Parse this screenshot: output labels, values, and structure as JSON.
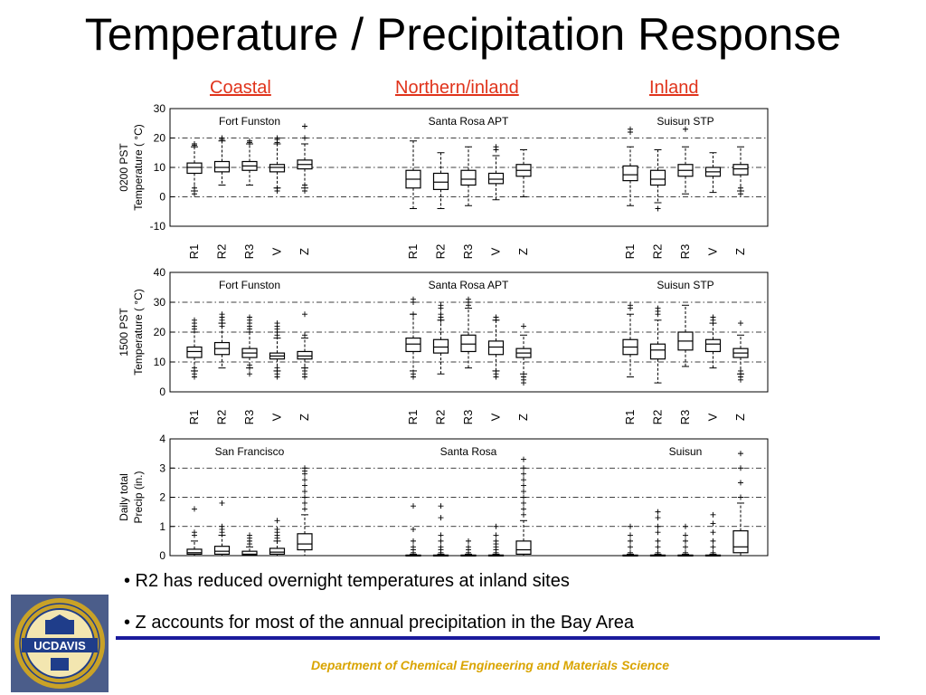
{
  "slide": {
    "title": "Temperature / Precipitation Response",
    "regions": [
      "Coastal",
      "Northern/inland",
      "Inland"
    ],
    "bullets": [
      "• R2 has reduced overnight temperatures at inland sites",
      "• Z accounts for most of the annual precipitation in the Bay Area"
    ],
    "footer": "Department of Chemical Engineering and Materials Science",
    "logo_text": "UCDAVIS",
    "logo_ring_text": "THE UNIVERSITY OF CALIFORNIA",
    "colors": {
      "title": "#000000",
      "region_link": "#e0331b",
      "footer_text": "#d9a400",
      "footer_line": "#1a1a9c",
      "logo_gold": "#c9a227",
      "logo_blue": "#1f3d8a"
    }
  },
  "chart_data": [
    {
      "type": "box",
      "ylabel": [
        "0200 PST",
        "Temperature ( °C)"
      ],
      "ylim": [
        -10,
        30
      ],
      "yticks": [
        -10,
        0,
        10,
        20,
        30
      ],
      "dashed_grid": [
        0,
        10,
        20
      ],
      "categories": [
        "R1",
        "R2",
        "R3",
        "V",
        "Z"
      ],
      "groups": [
        {
          "name": "Fort Funston",
          "boxes": [
            {
              "whislo": 2,
              "q1": 8,
              "med": 10,
              "q3": 11.5,
              "whishi": 17,
              "fliers": [
                1,
                3,
                17.5,
                18
              ]
            },
            {
              "whislo": 4,
              "q1": 8.5,
              "med": 10,
              "q3": 12,
              "whishi": 19,
              "fliers": [
                19.5,
                20
              ]
            },
            {
              "whislo": 4,
              "q1": 9,
              "med": 10.5,
              "q3": 12,
              "whishi": 18,
              "fliers": [
                18.5,
                19
              ]
            },
            {
              "whislo": 3,
              "q1": 8.5,
              "med": 10,
              "q3": 11,
              "whishi": 18,
              "fliers": [
                2,
                3,
                18.5,
                19.5,
                20
              ]
            },
            {
              "whislo": 3,
              "q1": 9.5,
              "med": 11,
              "q3": 12.5,
              "whishi": 18,
              "fliers": [
                2,
                4,
                20,
                24
              ]
            }
          ]
        },
        {
          "name": "Santa Rosa APT",
          "boxes": [
            {
              "whislo": -4,
              "q1": 3,
              "med": 6,
              "q3": 9,
              "whishi": 19,
              "fliers": []
            },
            {
              "whislo": -4,
              "q1": 2.5,
              "med": 5,
              "q3": 8,
              "whishi": 15,
              "fliers": []
            },
            {
              "whislo": -3,
              "q1": 4,
              "med": 6,
              "q3": 9,
              "whishi": 17,
              "fliers": []
            },
            {
              "whislo": -1,
              "q1": 4.5,
              "med": 6,
              "q3": 8,
              "whishi": 14,
              "fliers": [
                16,
                17
              ]
            },
            {
              "whislo": 0,
              "q1": 7,
              "med": 9,
              "q3": 11,
              "whishi": 16,
              "fliers": []
            }
          ]
        },
        {
          "name": "Suisun STP",
          "boxes": [
            {
              "whislo": -3,
              "q1": 5.5,
              "med": 7.5,
              "q3": 10.5,
              "whishi": 17,
              "fliers": [
                22,
                23
              ]
            },
            {
              "whislo": -2,
              "q1": 4,
              "med": 6,
              "q3": 9,
              "whishi": 16,
              "fliers": [
                -4
              ]
            },
            {
              "whislo": 1,
              "q1": 7,
              "med": 9,
              "q3": 11,
              "whishi": 17,
              "fliers": [
                23
              ]
            },
            {
              "whislo": 1.5,
              "q1": 7,
              "med": 8.5,
              "q3": 10,
              "whishi": 15,
              "fliers": []
            },
            {
              "whislo": 2,
              "q1": 7.5,
              "med": 9.5,
              "q3": 11,
              "whishi": 17,
              "fliers": [
                1,
                3
              ]
            }
          ]
        }
      ]
    },
    {
      "type": "box",
      "ylabel": [
        "1500 PST",
        "Temperature ( °C)"
      ],
      "ylim": [
        0,
        40
      ],
      "yticks": [
        0,
        10,
        20,
        30,
        40
      ],
      "dashed_grid": [
        10,
        20,
        30
      ],
      "categories": [
        "R1",
        "R2",
        "R3",
        "V",
        "Z"
      ],
      "groups": [
        {
          "name": "Fort Funston",
          "boxes": [
            {
              "whislo": 7,
              "q1": 11.5,
              "med": 13.5,
              "q3": 15,
              "whishi": 20,
              "fliers": [
                5,
                6,
                7,
                8,
                21,
                22,
                23,
                24
              ]
            },
            {
              "whislo": 8,
              "q1": 12.5,
              "med": 14.5,
              "q3": 16.5,
              "whishi": 23,
              "fliers": [
                22,
                23,
                24,
                25,
                26
              ]
            },
            {
              "whislo": 8,
              "q1": 11.5,
              "med": 13,
              "q3": 14.5,
              "whishi": 20,
              "fliers": [
                6,
                8,
                9,
                21,
                22,
                23,
                24,
                25
              ]
            },
            {
              "whislo": 7,
              "q1": 11,
              "med": 12,
              "q3": 13,
              "whishi": 18,
              "fliers": [
                5,
                6,
                7,
                8,
                19,
                20,
                21,
                22,
                23
              ]
            },
            {
              "whislo": 8,
              "q1": 11,
              "med": 12,
              "q3": 13.5,
              "whishi": 18,
              "fliers": [
                5,
                6,
                7,
                8,
                19,
                26
              ]
            }
          ]
        },
        {
          "name": "Santa Rosa APT",
          "boxes": [
            {
              "whislo": 7,
              "q1": 13.5,
              "med": 16,
              "q3": 18,
              "whishi": 26,
              "fliers": [
                5,
                6,
                26,
                30,
                31
              ]
            },
            {
              "whislo": 6,
              "q1": 13,
              "med": 15,
              "q3": 17.5,
              "whishi": 24,
              "fliers": [
                24,
                25,
                26,
                28,
                29
              ]
            },
            {
              "whislo": 8,
              "q1": 13.5,
              "med": 16,
              "q3": 19,
              "whishi": 28,
              "fliers": [
                29,
                30,
                31
              ]
            },
            {
              "whislo": 7,
              "q1": 12.5,
              "med": 15,
              "q3": 17,
              "whishi": 24,
              "fliers": [
                5,
                6,
                7,
                24,
                25
              ]
            },
            {
              "whislo": 6,
              "q1": 11.5,
              "med": 13,
              "q3": 14.5,
              "whishi": 19,
              "fliers": [
                3,
                4,
                5,
                22
              ]
            }
          ]
        },
        {
          "name": "Suisun STP",
          "boxes": [
            {
              "whislo": 5,
              "q1": 12.5,
              "med": 15,
              "q3": 17.5,
              "whishi": 26,
              "fliers": [
                28,
                29
              ]
            },
            {
              "whislo": 3,
              "q1": 11,
              "med": 14,
              "q3": 16,
              "whishi": 24,
              "fliers": [
                26,
                27,
                28
              ]
            },
            {
              "whislo": 8.5,
              "q1": 14,
              "med": 17,
              "q3": 20,
              "whishi": 29,
              "fliers": []
            },
            {
              "whislo": 8,
              "q1": 13.5,
              "med": 16,
              "q3": 17.5,
              "whishi": 23,
              "fliers": [
                24,
                25
              ]
            },
            {
              "whislo": 6,
              "q1": 11.5,
              "med": 13,
              "q3": 14.5,
              "whishi": 19,
              "fliers": [
                4,
                5,
                6,
                7,
                23
              ]
            }
          ]
        }
      ]
    },
    {
      "type": "box",
      "ylabel": [
        "Daily total",
        "Precip (in.)"
      ],
      "ylim": [
        0,
        4
      ],
      "yticks": [
        0,
        1,
        2,
        3,
        4
      ],
      "dashed_grid": [
        1,
        2,
        3
      ],
      "categories": [
        "",
        "",
        "",
        "",
        ""
      ],
      "groups": [
        {
          "name": "San Francisco",
          "boxes": [
            {
              "whislo": 0,
              "q1": 0.05,
              "med": 0.1,
              "q3": 0.22,
              "whishi": 0.5,
              "fliers": [
                0.7,
                0.8,
                1.6
              ]
            },
            {
              "whislo": 0,
              "q1": 0.05,
              "med": 0.15,
              "q3": 0.32,
              "whishi": 0.7,
              "fliers": [
                0.8,
                0.9,
                1.0,
                1.8
              ]
            },
            {
              "whislo": 0,
              "q1": 0.02,
              "med": 0.05,
              "q3": 0.15,
              "whishi": 0.3,
              "fliers": [
                0.4,
                0.5,
                0.6,
                0.7
              ]
            },
            {
              "whislo": 0,
              "q1": 0.05,
              "med": 0.12,
              "q3": 0.25,
              "whishi": 0.5,
              "fliers": [
                0.6,
                0.7,
                0.8,
                0.9,
                1.2
              ]
            },
            {
              "whislo": 0,
              "q1": 0.2,
              "med": 0.4,
              "q3": 0.75,
              "whishi": 1.4,
              "fliers": [
                1.6,
                1.8,
                2.0,
                2.2,
                2.4,
                2.6,
                2.8,
                2.9,
                3.0
              ]
            }
          ]
        },
        {
          "name": "Santa Rosa",
          "boxes": [
            {
              "whislo": 0,
              "q1": 0,
              "med": 0,
              "q3": 0.02,
              "whishi": 0.05,
              "fliers": [
                0.1,
                0.2,
                0.3,
                0.5,
                0.9,
                1.7
              ]
            },
            {
              "whislo": 0,
              "q1": 0,
              "med": 0,
              "q3": 0.02,
              "whishi": 0.05,
              "fliers": [
                0.1,
                0.2,
                0.3,
                0.5,
                0.7,
                1.3,
                1.7
              ]
            },
            {
              "whislo": 0,
              "q1": 0,
              "med": 0,
              "q3": 0.02,
              "whishi": 0.05,
              "fliers": [
                0.1,
                0.2,
                0.3,
                0.5
              ]
            },
            {
              "whislo": 0,
              "q1": 0,
              "med": 0,
              "q3": 0.02,
              "whishi": 0.05,
              "fliers": [
                0.1,
                0.2,
                0.3,
                0.4,
                0.5,
                0.7,
                1.0
              ]
            },
            {
              "whislo": 0,
              "q1": 0.05,
              "med": 0.2,
              "q3": 0.5,
              "whishi": 1.2,
              "fliers": [
                1.4,
                1.6,
                1.8,
                2.0,
                2.2,
                2.4,
                2.6,
                2.8,
                3.0,
                3.3
              ]
            }
          ]
        },
        {
          "name": "Suisun",
          "boxes": [
            {
              "whislo": 0,
              "q1": 0,
              "med": 0,
              "q3": 0.02,
              "whishi": 0.05,
              "fliers": [
                0.1,
                0.3,
                0.5,
                0.7,
                1.0
              ]
            },
            {
              "whislo": 0,
              "q1": 0,
              "med": 0,
              "q3": 0.02,
              "whishi": 0.05,
              "fliers": [
                0.1,
                0.3,
                0.5,
                0.8,
                1.0,
                1.3,
                1.5
              ]
            },
            {
              "whislo": 0,
              "q1": 0,
              "med": 0,
              "q3": 0.02,
              "whishi": 0.05,
              "fliers": [
                0.1,
                0.3,
                0.5,
                0.7,
                1.0
              ]
            },
            {
              "whislo": 0,
              "q1": 0,
              "med": 0,
              "q3": 0.02,
              "whishi": 0.05,
              "fliers": [
                0.1,
                0.3,
                0.5,
                0.8,
                1.1,
                1.4
              ]
            },
            {
              "whislo": 0,
              "q1": 0.1,
              "med": 0.3,
              "q3": 0.85,
              "whishi": 1.8,
              "fliers": [
                2.0,
                2.5,
                3.0,
                3.5
              ]
            }
          ]
        }
      ]
    }
  ]
}
